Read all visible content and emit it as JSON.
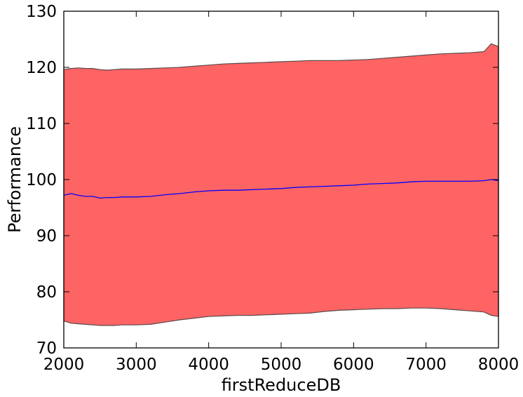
{
  "chart_data": {
    "type": "area",
    "title": "",
    "xlabel": "firstReduceDB",
    "ylabel": "Performance",
    "xlim": [
      2000,
      8000
    ],
    "ylim": [
      70,
      130
    ],
    "xticks": [
      2000,
      3000,
      4000,
      5000,
      6000,
      7000,
      8000
    ],
    "yticks": [
      70,
      80,
      90,
      100,
      110,
      120,
      130
    ],
    "xtick_labels": [
      "2000",
      "3000",
      "4000",
      "5000",
      "6000",
      "7000",
      "8000"
    ],
    "ytick_labels": [
      "70",
      "80",
      "90",
      "100",
      "110",
      "120",
      "130"
    ],
    "grid": false,
    "legend": "none",
    "colors": {
      "band_fill": "#ff6464",
      "band_edge": "#5a4a4a",
      "mean_line": "#0000ff"
    },
    "x": [
      2000,
      2100,
      2200,
      2300,
      2400,
      2500,
      2600,
      2700,
      2800,
      2900,
      3000,
      3200,
      3400,
      3600,
      3800,
      4000,
      4200,
      4400,
      4600,
      4800,
      5000,
      5200,
      5400,
      5600,
      5800,
      6000,
      6200,
      6400,
      6600,
      6800,
      7000,
      7200,
      7400,
      7600,
      7800,
      7900,
      8000
    ],
    "series": [
      {
        "values": [
          97.2,
          97.5,
          97.2,
          97.0,
          97.0,
          96.7,
          96.8,
          96.8,
          96.9,
          96.9,
          96.9,
          97.0,
          97.3,
          97.5,
          97.8,
          98.0,
          98.1,
          98.1,
          98.2,
          98.3,
          98.4,
          98.6,
          98.7,
          98.8,
          98.9,
          99.0,
          99.2,
          99.3,
          99.4,
          99.6,
          99.7,
          99.7,
          99.7,
          99.7,
          99.8,
          100.0,
          99.8
        ]
      },
      {
        "values": [
          119.6,
          119.8,
          119.9,
          119.8,
          119.8,
          119.6,
          119.5,
          119.6,
          119.7,
          119.7,
          119.7,
          119.8,
          119.9,
          120.0,
          120.2,
          120.4,
          120.6,
          120.7,
          120.8,
          120.9,
          121.0,
          121.1,
          121.2,
          121.2,
          121.2,
          121.3,
          121.4,
          121.6,
          121.8,
          122.0,
          122.2,
          122.4,
          122.5,
          122.6,
          122.8,
          124.2,
          123.7
        ]
      },
      {
        "values": [
          74.8,
          74.4,
          74.3,
          74.2,
          74.1,
          74.0,
          74.0,
          74.0,
          74.1,
          74.1,
          74.1,
          74.2,
          74.6,
          75.0,
          75.3,
          75.6,
          75.7,
          75.8,
          75.8,
          75.9,
          76.0,
          76.1,
          76.2,
          76.5,
          76.7,
          76.8,
          76.9,
          77.0,
          77.0,
          77.1,
          77.1,
          77.0,
          76.8,
          76.6,
          76.4,
          75.8,
          75.6
        ]
      }
    ]
  }
}
